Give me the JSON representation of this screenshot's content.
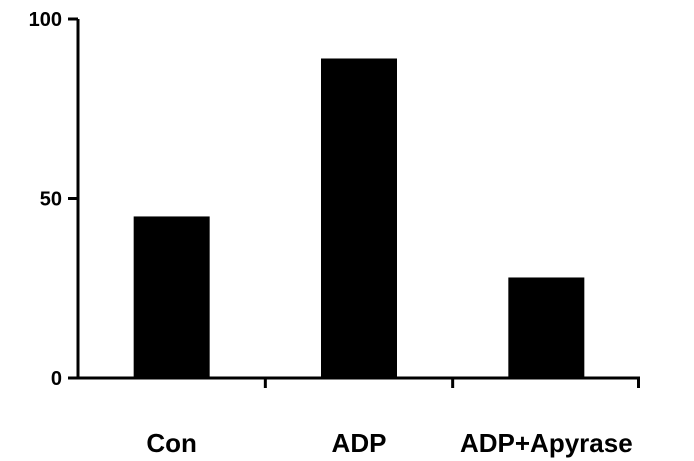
{
  "chart_data": {
    "type": "bar",
    "categories": [
      "Con",
      "ADP",
      "ADP+Apyrase"
    ],
    "values": [
      45,
      89,
      28
    ],
    "ylim": [
      0,
      100
    ],
    "yticks": [
      0,
      50,
      100
    ],
    "grid": false,
    "legend": "none",
    "bar_color": "#000000"
  }
}
